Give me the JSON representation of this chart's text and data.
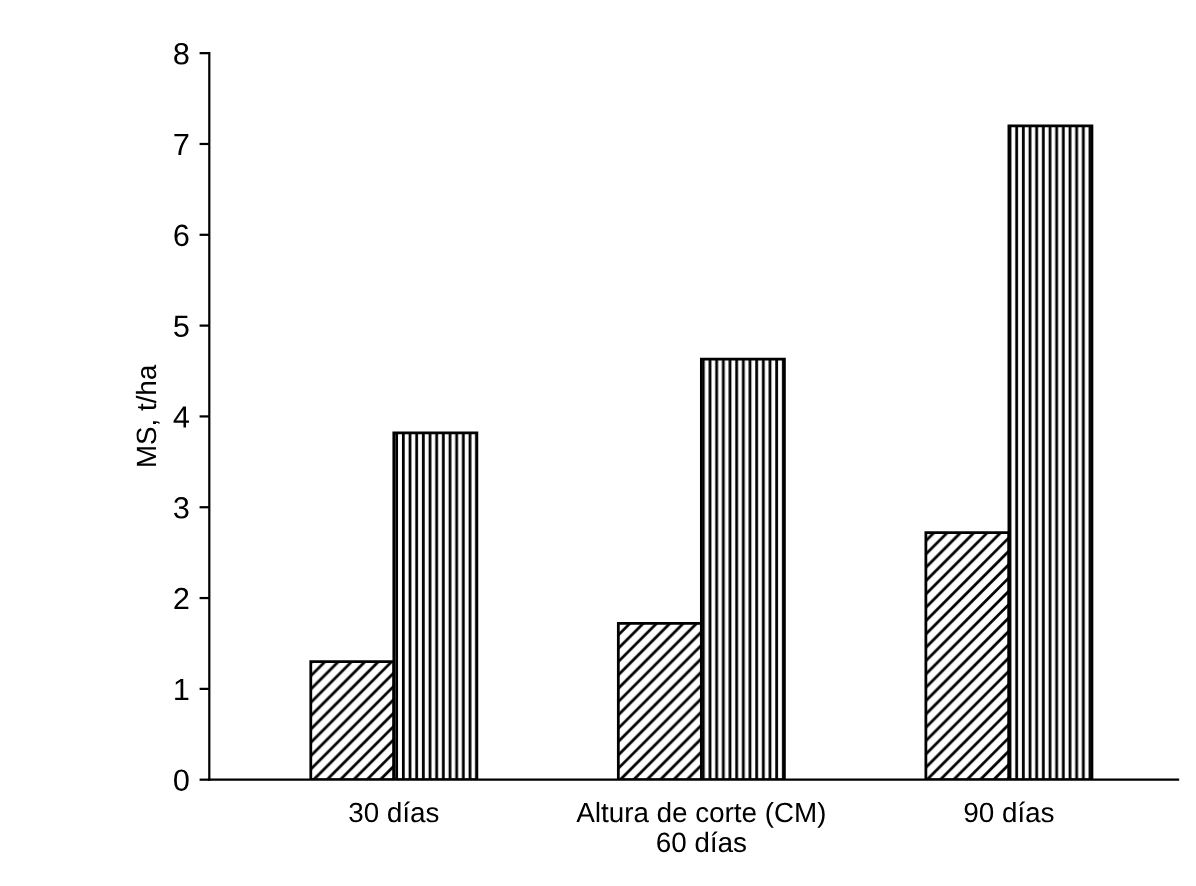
{
  "chart_data": {
    "type": "bar",
    "ylabel": "MS, t/ha",
    "categories": [
      "30 días",
      "Altura de corte (CM)\n60 días",
      "90 días"
    ],
    "series": [
      {
        "color": "#000000",
        "values": [
          1.3,
          1.72,
          2.72
        ]
      },
      {
        "color": "#000000",
        "values": [
          3.82,
          4.63,
          7.2
        ]
      }
    ],
    "ylim": [
      0,
      8
    ],
    "yticks": [
      0,
      1,
      2,
      3,
      4,
      5,
      6,
      7,
      8
    ],
    "grid": false,
    "legend": false
  }
}
